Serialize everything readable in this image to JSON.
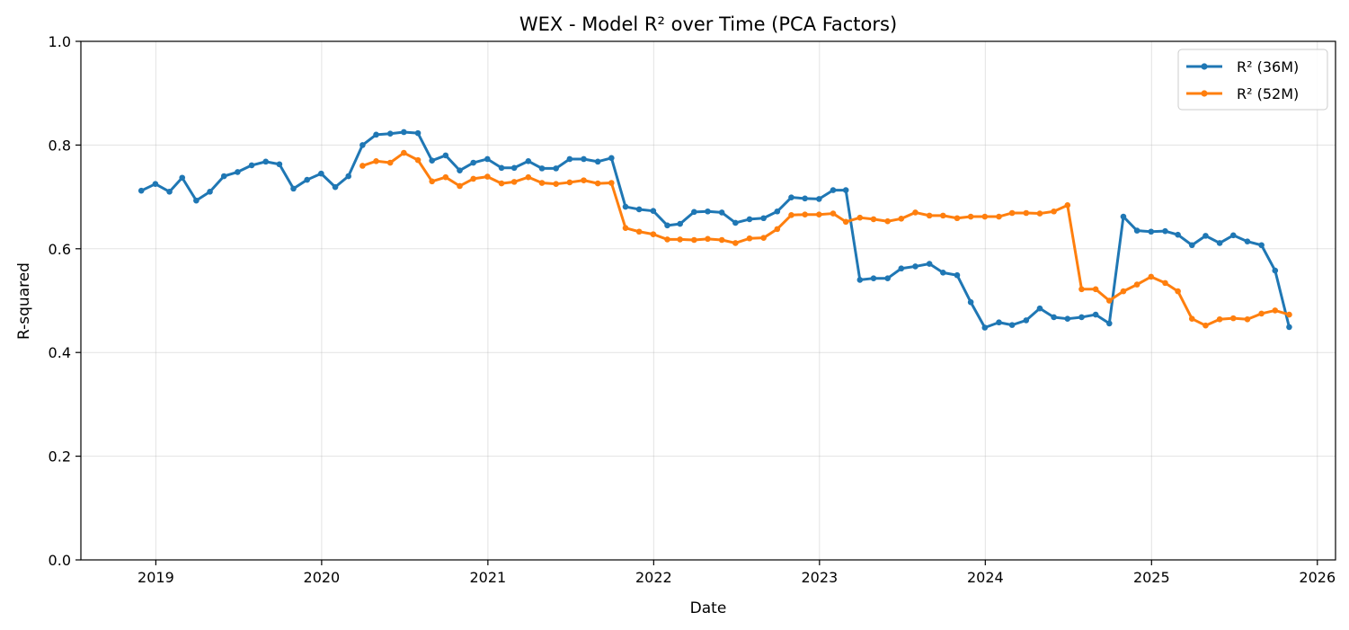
{
  "chart_data": {
    "type": "line",
    "title": "WEX - Model R² over Time (PCA Factors)",
    "xlabel": "Date",
    "ylabel": "R-squared",
    "xlim": [
      "2018-07-20",
      "2026-02-10"
    ],
    "ylim": [
      0,
      1.0
    ],
    "x_ticks": [
      "2019",
      "2020",
      "2021",
      "2022",
      "2023",
      "2024",
      "2025",
      "2026"
    ],
    "y_ticks": [
      "0.0",
      "0.2",
      "0.4",
      "0.6",
      "0.8",
      "1.0"
    ],
    "grid": true,
    "legend_position": "top-right",
    "series": [
      {
        "name": "R² (36M)",
        "color": "#1f77b4",
        "x": [
          "2018-11-30",
          "2018-12-31",
          "2019-01-31",
          "2019-02-28",
          "2019-03-31",
          "2019-04-30",
          "2019-05-31",
          "2019-06-30",
          "2019-07-31",
          "2019-08-31",
          "2019-09-30",
          "2019-10-31",
          "2019-11-30",
          "2019-12-31",
          "2020-01-31",
          "2020-02-29",
          "2020-03-31",
          "2020-04-30",
          "2020-05-31",
          "2020-06-30",
          "2020-07-31",
          "2020-08-31",
          "2020-09-30",
          "2020-10-31",
          "2020-11-30",
          "2020-12-31",
          "2021-01-31",
          "2021-02-28",
          "2021-03-31",
          "2021-04-30",
          "2021-05-31",
          "2021-06-30",
          "2021-07-31",
          "2021-08-31",
          "2021-09-30",
          "2021-10-31",
          "2021-11-30",
          "2021-12-31",
          "2022-01-31",
          "2022-02-28",
          "2022-03-31",
          "2022-04-30",
          "2022-05-31",
          "2022-06-30",
          "2022-07-31",
          "2022-08-31",
          "2022-09-30",
          "2022-10-31",
          "2022-11-30",
          "2022-12-31",
          "2023-01-31",
          "2023-02-28",
          "2023-03-31",
          "2023-04-30",
          "2023-05-31",
          "2023-06-30",
          "2023-07-31",
          "2023-08-31",
          "2023-09-30",
          "2023-10-31",
          "2023-11-30",
          "2023-12-31",
          "2024-01-31",
          "2024-02-29",
          "2024-03-31",
          "2024-04-30",
          "2024-05-31",
          "2024-06-30",
          "2024-07-31",
          "2024-08-31",
          "2024-09-30",
          "2024-10-31",
          "2024-11-30",
          "2024-12-31",
          "2025-01-31",
          "2025-02-28",
          "2025-03-31",
          "2025-04-30",
          "2025-05-31",
          "2025-06-30",
          "2025-07-31",
          "2025-08-31",
          "2025-09-30",
          "2025-10-31"
        ],
        "values": [
          0.712,
          0.725,
          0.71,
          0.737,
          0.693,
          0.71,
          0.74,
          0.748,
          0.761,
          0.768,
          0.763,
          0.716,
          0.733,
          0.745,
          0.719,
          0.74,
          0.8,
          0.82,
          0.822,
          0.825,
          0.823,
          0.77,
          0.78,
          0.751,
          0.766,
          0.773,
          0.756,
          0.756,
          0.769,
          0.755,
          0.755,
          0.773,
          0.773,
          0.768,
          0.775,
          0.681,
          0.676,
          0.673,
          0.645,
          0.648,
          0.671,
          0.672,
          0.67,
          0.65,
          0.657,
          0.659,
          0.672,
          0.699,
          0.697,
          0.696,
          0.713,
          0.713,
          0.54,
          0.543,
          0.543,
          0.562,
          0.566,
          0.571,
          0.554,
          0.549,
          0.497,
          0.448,
          0.458,
          0.453,
          0.462,
          0.485,
          0.468,
          0.465,
          0.468,
          0.473,
          0.456,
          0.662,
          0.635,
          0.633,
          0.634,
          0.627,
          0.607,
          0.625,
          0.611,
          0.626,
          0.614,
          0.607,
          0.558,
          0.449
        ]
      },
      {
        "name": "R² (52M)",
        "color": "#ff7f0e",
        "x": [
          "2020-03-31",
          "2020-04-30",
          "2020-05-31",
          "2020-06-30",
          "2020-07-31",
          "2020-08-31",
          "2020-09-30",
          "2020-10-31",
          "2020-11-30",
          "2020-12-31",
          "2021-01-31",
          "2021-02-28",
          "2021-03-31",
          "2021-04-30",
          "2021-05-31",
          "2021-06-30",
          "2021-07-31",
          "2021-08-31",
          "2021-09-30",
          "2021-10-31",
          "2021-11-30",
          "2021-12-31",
          "2022-01-31",
          "2022-02-28",
          "2022-03-31",
          "2022-04-30",
          "2022-05-31",
          "2022-06-30",
          "2022-07-31",
          "2022-08-31",
          "2022-09-30",
          "2022-10-31",
          "2022-11-30",
          "2022-12-31",
          "2023-01-31",
          "2023-02-28",
          "2023-03-31",
          "2023-04-30",
          "2023-05-31",
          "2023-06-30",
          "2023-07-31",
          "2023-08-31",
          "2023-09-30",
          "2023-10-31",
          "2023-11-30",
          "2023-12-31",
          "2024-01-31",
          "2024-02-29",
          "2024-03-31",
          "2024-04-30",
          "2024-05-31",
          "2024-06-30",
          "2024-07-31",
          "2024-08-31",
          "2024-09-30",
          "2024-10-31",
          "2024-11-30",
          "2024-12-31",
          "2025-01-31",
          "2025-02-28",
          "2025-03-31",
          "2025-04-30",
          "2025-05-31",
          "2025-06-30",
          "2025-07-31",
          "2025-08-31",
          "2025-09-30",
          "2025-10-31"
        ],
        "values": [
          0.76,
          0.769,
          0.766,
          0.785,
          0.771,
          0.73,
          0.738,
          0.721,
          0.735,
          0.739,
          0.726,
          0.729,
          0.738,
          0.727,
          0.725,
          0.728,
          0.732,
          0.726,
          0.727,
          0.64,
          0.633,
          0.628,
          0.618,
          0.618,
          0.617,
          0.619,
          0.617,
          0.611,
          0.62,
          0.621,
          0.638,
          0.665,
          0.666,
          0.666,
          0.668,
          0.652,
          0.66,
          0.657,
          0.653,
          0.658,
          0.67,
          0.664,
          0.664,
          0.659,
          0.662,
          0.662,
          0.662,
          0.669,
          0.669,
          0.668,
          0.672,
          0.684,
          0.522,
          0.522,
          0.5,
          0.518,
          0.531,
          0.546,
          0.534,
          0.518,
          0.465,
          0.452,
          0.464,
          0.466,
          0.464,
          0.475,
          0.481,
          0.473
        ]
      }
    ]
  }
}
